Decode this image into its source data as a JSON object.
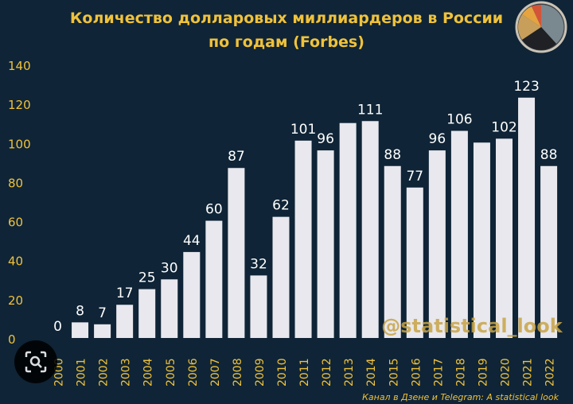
{
  "header": {
    "title_line1": "Количество долларовых миллиардеров в России",
    "title_line2": "по годам (Forbes)"
  },
  "watermark": "@statistical_look",
  "footer": "Канал в Дзене и Telegram: A statistical look",
  "lens_button": {
    "icon": "lens-search-icon"
  },
  "colors": {
    "background": "#0f2436",
    "bar": "#e8e8ee",
    "axis_text": "#f0c23a",
    "label_text": "#ffffff"
  },
  "chart_data": {
    "type": "bar",
    "categories": [
      "2000",
      "2001",
      "2002",
      "2003",
      "2004",
      "2005",
      "2006",
      "2007",
      "2008",
      "2009",
      "2010",
      "2011",
      "2012",
      "2013",
      "2014",
      "2015",
      "2016",
      "2017",
      "2018",
      "2019",
      "2020",
      "2021",
      "2022"
    ],
    "values": [
      0,
      8,
      7,
      17,
      25,
      30,
      44,
      60,
      87,
      32,
      62,
      101,
      96,
      110,
      111,
      88,
      77,
      96,
      106,
      100,
      102,
      123,
      88
    ],
    "data_labels": [
      "0",
      "8",
      "7",
      "17",
      "25",
      "30",
      "44",
      "60",
      "87",
      "32",
      "62",
      "101",
      "96",
      "",
      "111",
      "88",
      "77",
      "96",
      "106",
      "",
      "102",
      "123",
      "88"
    ],
    "yticks": [
      0,
      20,
      40,
      60,
      80,
      100,
      120,
      140
    ],
    "ylim": [
      0,
      140
    ],
    "grid": false
  }
}
